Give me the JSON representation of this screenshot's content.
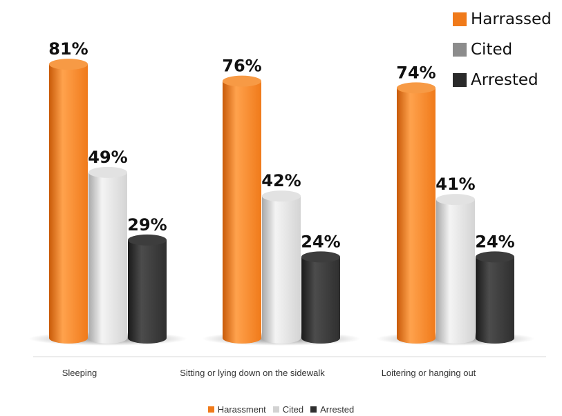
{
  "colors": {
    "harassed": "#f07a1a",
    "cited": "#d2d2d2",
    "arrested": "#2f2f2f"
  },
  "top_legend": [
    {
      "label": "Harrassed",
      "color": "#f07a1a"
    },
    {
      "label": "Cited",
      "color": "#8c8c8c"
    },
    {
      "label": "Arrested",
      "color": "#2a2a2a"
    }
  ],
  "bottom_legend": [
    {
      "label": "Harassment",
      "color": "#f07a1a"
    },
    {
      "label": "Cited",
      "color": "#d2d2d2"
    },
    {
      "label": "Arrested",
      "color": "#2f2f2f"
    }
  ],
  "chart_data": {
    "type": "bar",
    "title": "",
    "xlabel": "",
    "ylabel": "",
    "ylim": [
      0,
      100
    ],
    "categories": [
      "Sleeping",
      "Sitting or lying down on the sidewalk",
      "Loitering or hanging out"
    ],
    "series": [
      {
        "name": "Harassment",
        "values": [
          81,
          76,
          74
        ]
      },
      {
        "name": "Cited",
        "values": [
          49,
          42,
          41
        ]
      },
      {
        "name": "Arrested",
        "values": [
          29,
          24,
          24
        ]
      }
    ],
    "data_labels": [
      [
        "81%",
        "76%",
        "74%"
      ],
      [
        "49%",
        "42%",
        "41%"
      ],
      [
        "29%",
        "24%",
        "24%"
      ]
    ],
    "legend_placement": "top-right and bottom",
    "grid": false
  }
}
